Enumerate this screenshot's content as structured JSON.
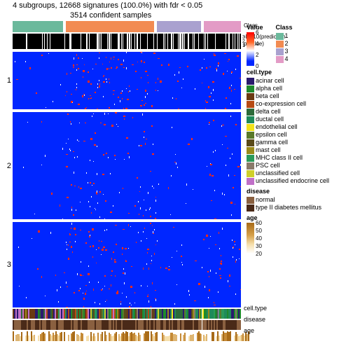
{
  "header": {
    "line1": "4 subgroups, 12668 signatures (100.0%) with fdr < 0.05",
    "line2": "3514 confident samples"
  },
  "labels": {
    "class": "Class",
    "pvalue": "-log10(prediction",
    "pvalue2": "   p-value)",
    "cellTypeShort": "cell.type",
    "disease": "disease",
    "age": "age"
  },
  "classes": [
    {
      "id": 1,
      "color": "#6bb99c",
      "width": 0.23
    },
    {
      "id": 2,
      "color": "#f28b52",
      "width": 0.4
    },
    {
      "id": 3,
      "color": "#a9a1cf",
      "width": 0.2
    },
    {
      "id": 4,
      "color": "#e39bc6",
      "width": 0.17
    }
  ],
  "colGap": 0.012,
  "rowGroups": [
    {
      "label": "1",
      "height": 0.23
    },
    {
      "label": "2",
      "height": 0.43
    },
    {
      "label": "3",
      "height": 0.34
    }
  ],
  "rowGap": 0.012,
  "heatmapTotalHeight": 356,
  "valueScale": {
    "min": 0,
    "max": 6,
    "ticks": [
      0,
      2,
      4,
      6
    ],
    "height": 48
  },
  "valueGradientCss": "linear-gradient(to top,#0026ff 0%,#0026ff 14%,#fff 45%,#ff6a2a 70%,#ff0000 100%)",
  "cellIntensity": {
    "comment": "per [rowGroup][classCol] -> [redAmount 0-1, whiteAmount 0-1] controlling speckle density",
    "grid": [
      [
        [
          0.06,
          0.1
        ],
        [
          0.8,
          0.25
        ],
        [
          0.22,
          0.15
        ],
        [
          0.55,
          0.25
        ]
      ],
      [
        [
          0.03,
          0.06
        ],
        [
          0.28,
          0.3
        ],
        [
          0.05,
          0.1
        ],
        [
          0.2,
          0.2
        ]
      ],
      [
        [
          0.05,
          0.1
        ],
        [
          0.55,
          0.3
        ],
        [
          0.1,
          0.15
        ],
        [
          0.35,
          0.25
        ]
      ]
    ]
  },
  "pvWhiteProb": [
    0.1,
    0.3,
    0.35,
    0.28
  ],
  "cellType": {
    "title": "cell.type",
    "palette": {
      "acinar cell": "#2a1a6e",
      "alpha cell": "#1d8a2c",
      "beta cell": "#6a3a12",
      "co-expression cell": "#b74a14",
      "delta cell": "#2d6a3a",
      "ductal cell": "#1f8a5a",
      "endothelial cell": "#f2e21a",
      "epsilon cell": "#5a7a2a",
      "gamma cell": "#5a4a1a",
      "mast cell": "#9a8a1a",
      "MHC class II cell": "#2a9a5a",
      "PSC cell": "#8a7a6a",
      "unclassified cell": "#cfcf2a",
      "unclassified endocrine cell": "#c070c8"
    },
    "dominantPerClass": [
      [
        "unclassified endocrine cell",
        "acinar cell",
        "beta cell",
        "delta cell"
      ],
      [
        "alpha cell",
        "ductal cell",
        "co-expression cell",
        "gamma cell",
        "acinar cell",
        "beta cell"
      ],
      [
        "acinar cell",
        "alpha cell",
        "ductal cell",
        "delta cell"
      ],
      [
        "ductal cell",
        "acinar cell",
        "alpha cell",
        "MHC class II cell"
      ]
    ]
  },
  "disease": {
    "title": "disease",
    "palette": {
      "normal": "#8a6040",
      "type II diabetes mellitus": "#4a2a18"
    },
    "ratioNormalPerClass": [
      0.55,
      0.45,
      0.5,
      0.4
    ]
  },
  "age": {
    "title": "age",
    "ticks": [
      20,
      30,
      40,
      50,
      60
    ],
    "height": 44,
    "gradientCss": "linear-gradient(to top,#fff 0%,#f6dfab 30%,#d6a04a 60%,#a86b18 100%)",
    "palette": [
      "#ffffff",
      "#f6dfab",
      "#deb572",
      "#c58a36",
      "#a86b18"
    ]
  },
  "legendClassTitle": "Class"
}
